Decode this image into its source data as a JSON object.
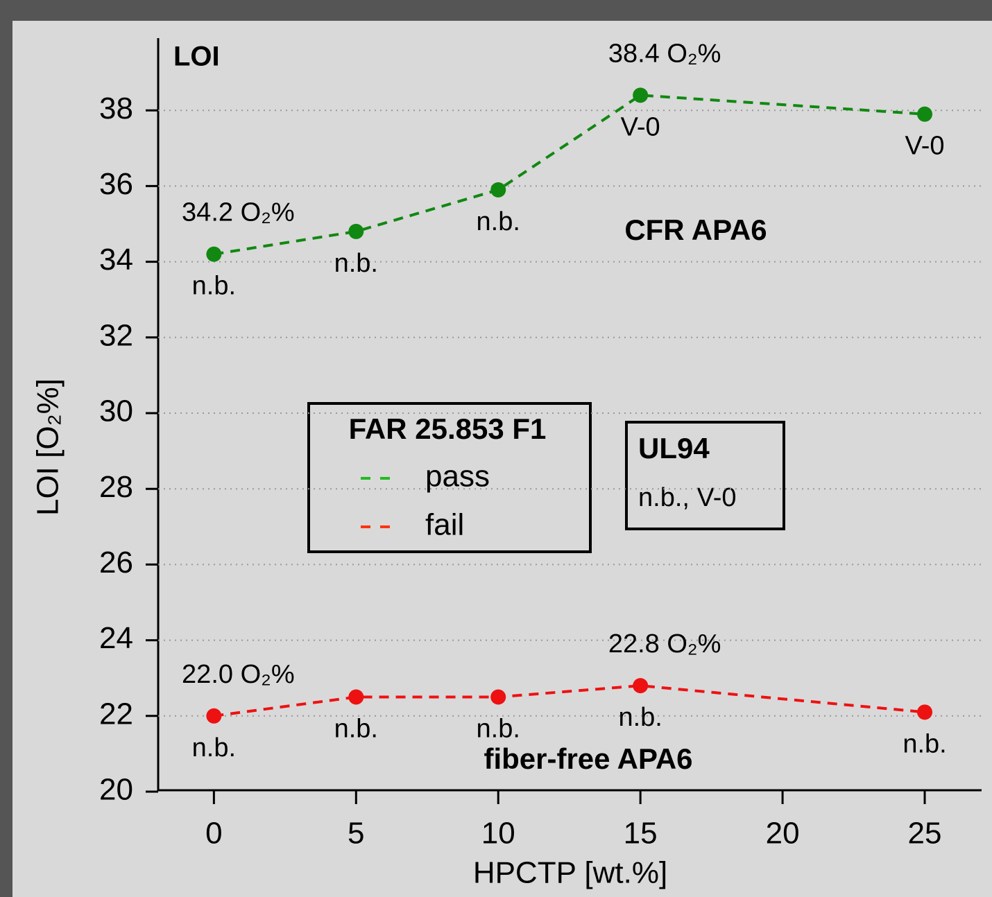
{
  "chart_data": {
    "type": "line",
    "title": "LOI",
    "x_label": "HPCTP [wt.%]",
    "y_label": "LOI [O₂%]",
    "x": [
      0,
      5,
      10,
      15,
      25
    ],
    "series": [
      {
        "name": "CFR APA6",
        "color": "#118811",
        "values": [
          34.2,
          34.8,
          35.9,
          38.4,
          37.9
        ],
        "value_labels": [
          "34.2 O₂%",
          null,
          null,
          "38.4 O₂%",
          null
        ],
        "point_labels": [
          "n.b.",
          "n.b.",
          "n.b.",
          "V-0",
          "V-0"
        ]
      },
      {
        "name": "fiber-free APA6",
        "color": "#ee1111",
        "values": [
          22.0,
          22.5,
          22.5,
          22.8,
          22.1
        ],
        "value_labels": [
          "22.0 O₂%",
          null,
          null,
          "22.8 O₂%",
          null
        ],
        "point_labels": [
          "n.b.",
          "n.b.",
          "n.b.",
          "n.b.",
          "n.b."
        ]
      }
    ],
    "xlim": [
      -2.4,
      27
    ],
    "ylim": [
      20,
      40
    ],
    "xticks": [
      0,
      5,
      10,
      15,
      20,
      25
    ],
    "yticks": [
      20,
      22,
      24,
      26,
      28,
      30,
      32,
      34,
      36,
      38
    ],
    "grid": true,
    "legend": {
      "title": "FAR 25.853 F1",
      "entries": [
        {
          "label": "pass",
          "color": "#22bb22"
        },
        {
          "label": "fail",
          "color": "#ff3311"
        }
      ]
    },
    "ul94_box": {
      "title": "UL94",
      "text": "n.b., V-0"
    }
  }
}
